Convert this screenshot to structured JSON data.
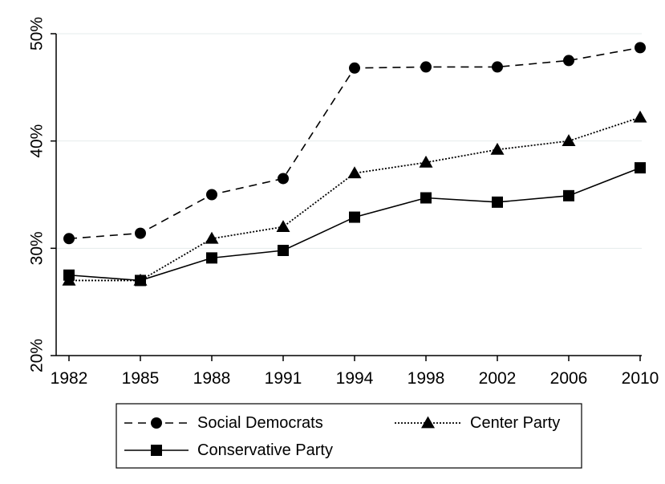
{
  "chart_data": {
    "type": "line",
    "title": "",
    "xlabel": "",
    "ylabel": "",
    "x": [
      "1982",
      "1985",
      "1988",
      "1991",
      "1994",
      "1998",
      "2002",
      "2006",
      "2010"
    ],
    "yticks": [
      "20%",
      "30%",
      "40%",
      "50%"
    ],
    "ylim": [
      20,
      50
    ],
    "grid": true,
    "legend_position": "bottom",
    "series": [
      {
        "name": "Social Democrats",
        "values": [
          30.9,
          31.4,
          35.0,
          36.5,
          46.8,
          46.9,
          46.9,
          47.5,
          48.7
        ],
        "line_style": "dashed",
        "marker": "circle",
        "color": "#000000"
      },
      {
        "name": "Center Party",
        "values": [
          27.0,
          27.0,
          30.9,
          32.0,
          37.0,
          38.0,
          39.2,
          40.0,
          42.2
        ],
        "line_style": "dotted",
        "marker": "triangle",
        "color": "#000000"
      },
      {
        "name": "Conservative Party",
        "values": [
          27.5,
          27.0,
          29.1,
          29.8,
          32.9,
          34.7,
          34.3,
          34.9,
          37.5
        ],
        "line_style": "solid",
        "marker": "square",
        "color": "#000000"
      }
    ]
  }
}
